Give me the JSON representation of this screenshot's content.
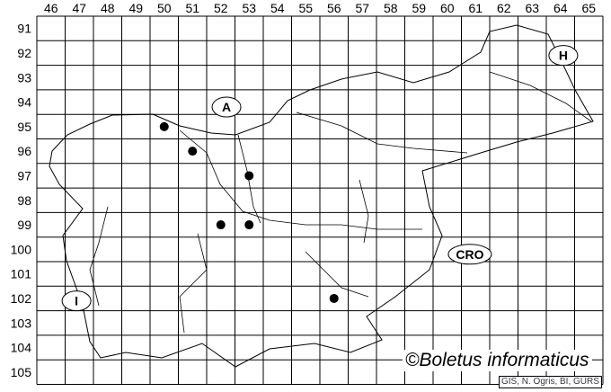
{
  "grid": {
    "columns": [
      "46",
      "47",
      "48",
      "49",
      "50",
      "51",
      "52",
      "53",
      "54",
      "55",
      "56",
      "57",
      "58",
      "59",
      "60",
      "61",
      "62",
      "63",
      "64",
      "65"
    ],
    "rows": [
      "91",
      "92",
      "93",
      "94",
      "95",
      "96",
      "97",
      "98",
      "99",
      "100",
      "101",
      "102",
      "103",
      "104",
      "105"
    ]
  },
  "countries": [
    {
      "label": "A",
      "col": 52.7,
      "row": 94.7
    },
    {
      "label": "H",
      "col": 64.6,
      "row": 92.6
    },
    {
      "label": "CRO",
      "col": 61.3,
      "row": 100.7
    },
    {
      "label": "I",
      "col": 47.4,
      "row": 102.6
    }
  ],
  "records": [
    {
      "col": 50,
      "row": 95
    },
    {
      "col": 51,
      "row": 96
    },
    {
      "col": 53,
      "row": 97
    },
    {
      "col": 52,
      "row": 99
    },
    {
      "col": 53,
      "row": 99
    },
    {
      "col": 56,
      "row": 102
    }
  ],
  "copyright": "©Boletus informaticus",
  "source": "GIS, N. Ogris, BI, GURS",
  "colors": {
    "lines": "#000000",
    "records": "#000000"
  }
}
